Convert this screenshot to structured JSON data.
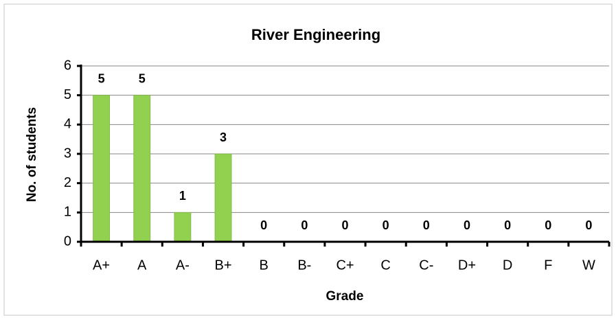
{
  "chart_data": {
    "type": "bar",
    "title": "River Engineering",
    "x_label": "Grade",
    "y_label": "No. of students",
    "categories": [
      "A+",
      "A",
      "A-",
      "B+",
      "B",
      "B-",
      "C+",
      "C",
      "C-",
      "D+",
      "D",
      "F",
      "W"
    ],
    "values": [
      5,
      5,
      1,
      3,
      0,
      0,
      0,
      0,
      0,
      0,
      0,
      0,
      0
    ],
    "color": "#92d050",
    "ylim": [
      0,
      6
    ],
    "yticks": [
      0,
      1,
      2,
      3,
      4,
      5,
      6
    ],
    "grid": true
  }
}
